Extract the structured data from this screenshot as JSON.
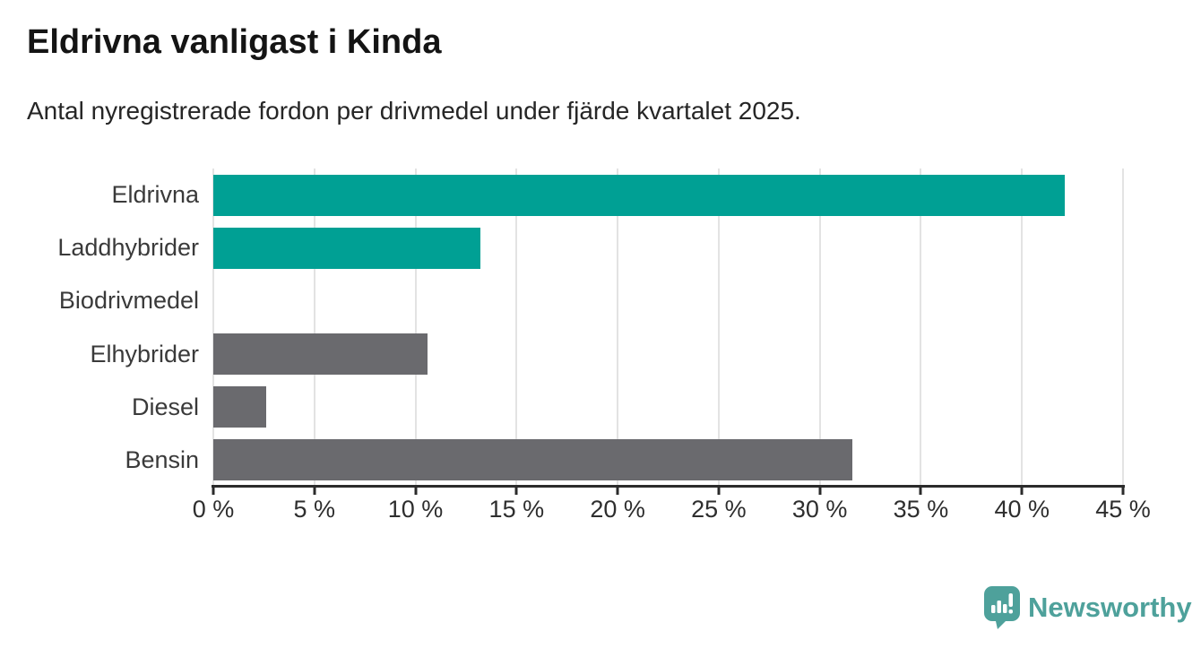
{
  "header": {
    "title": "Eldrivna vanligast i Kinda",
    "subtitle": "Antal nyregistrerade fordon per drivmedel under fjärde kvartalet 2025."
  },
  "chart_data": {
    "type": "bar",
    "orientation": "horizontal",
    "title": "Eldrivna vanligast i Kinda",
    "subtitle": "Antal nyregistrerade fordon per drivmedel under fjärde kvartalet 2025.",
    "categories": [
      "Eldrivna",
      "Laddhybrider",
      "Biodrivmedel",
      "Elhybrider",
      "Diesel",
      "Bensin"
    ],
    "values": [
      42.1,
      13.2,
      0,
      10.6,
      2.6,
      31.6
    ],
    "unit": "%",
    "xlim": [
      0,
      45
    ],
    "xticks": [
      0,
      5,
      10,
      15,
      20,
      25,
      30,
      35,
      40,
      45
    ],
    "xtick_suffix": " %",
    "grid": true,
    "legend_position": "none",
    "bar_colors": [
      "#00a094",
      "#00a094",
      "#6a6a6e",
      "#6a6a6e",
      "#6a6a6e",
      "#6a6a6e"
    ],
    "colors": {
      "highlight": "#00a094",
      "default": "#6a6a6e",
      "gridline": "#e3e3e3",
      "axis": "#2b2b2b"
    }
  },
  "footer": {
    "brand": "Newsworthy",
    "brand_color": "#4ea19b",
    "logo_icon": "newsworthy-pin-bar-chart-icon"
  }
}
